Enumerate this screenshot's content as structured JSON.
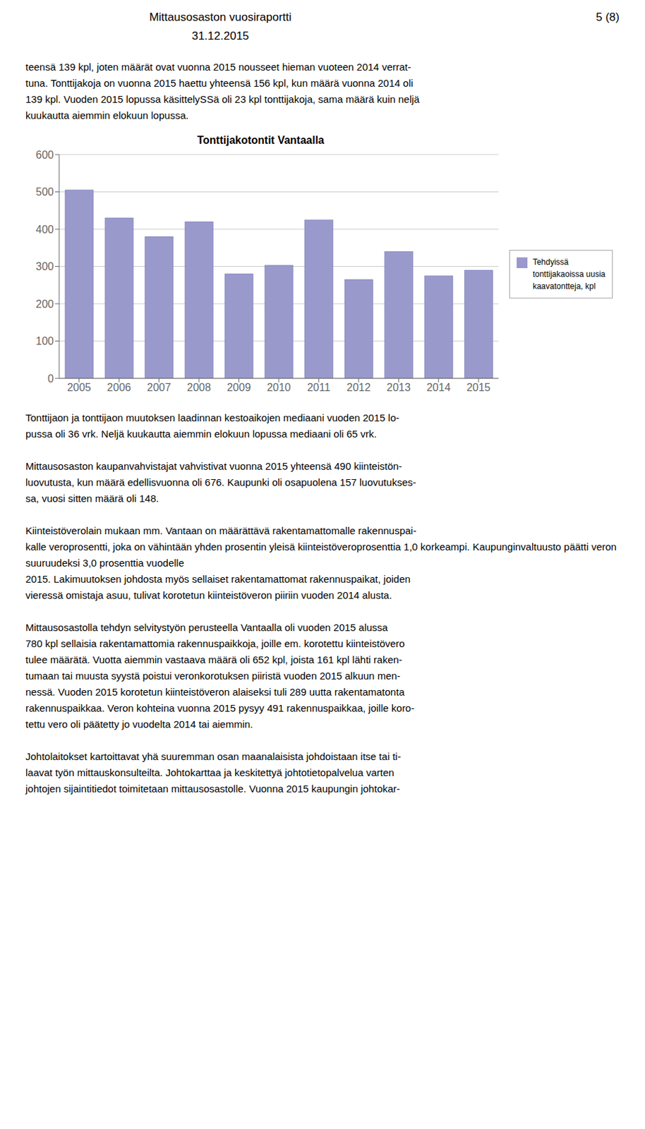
{
  "chart_data": {
    "type": "bar",
    "title": "Tonttijakotontit Vantaalla",
    "categories": [
      "2005",
      "2006",
      "2007",
      "2008",
      "2009",
      "2010",
      "2011",
      "2012",
      "2013",
      "2014",
      "2015"
    ],
    "series": [
      {
        "name": "Tehdyissä\ntonttijakaoissa uusia\nkaavatontteja, kpl",
        "color": "#9999cc",
        "values": [
          505,
          430,
          380,
          420,
          280,
          303,
          425,
          265,
          340,
          275,
          290
        ]
      }
    ],
    "ylim": [
      0,
      600
    ],
    "yticks": [
      0,
      100,
      200,
      300,
      400,
      500,
      600
    ],
    "grid": true,
    "legend": "right",
    "annotations": [
      [
        "Mittausosaston vuosiraportti",
        "5 (8)",
        "31.12.2015"
      ],
      [
        "teensä 139 kpl, joten määrät ovat vuonna 2015 nousseet hieman vuoteen 2014 verrat-",
        "tuna. Tonttijakoja on vuonna 2015 haettu yhteensä 156 kpl, kun määrä vuonna 2014 oli",
        "139 kpl. Vuoden 2015 lopussa käsittelySSä oli 23 kpl tonttijakoja, sama määrä kuin neljä",
        "kuukautta aiemmin elokuun lopussa."
      ],
      [
        "Tonttijaon ja tonttijaon muutoksen laadinnan kestoaikojen mediaani vuoden 2015 lo-",
        "pussa oli 36 vrk. Neljä kuukautta aiemmin elokuun lopussa mediaani oli 65 vrk."
      ],
      [
        "Mittausosaston kaupanvahvistajat vahvistivat vuonna 2015 yhteensä 490 kiinteistön-",
        "luovutusta, kun määrä edellisvuonna oli 676. Kaupunki oli osapuolena 157 luovutukses-",
        "sa, vuosi sitten määrä oli 148."
      ],
      [
        "Kiinteistöverolain mukaan mm. Vantaan on määrättävä rakentamattomalle rakennuspai-",
        "kalle veroprosentti, joka on vähintään yhden prosentin yleisä kiinteistöveroprosenttia 1,0 korkeampi. Kaupunginvaltuusto päätti veron suuruudeksi 3,0 prosenttia vuodelle",
        "2015. Lakimuutoksen johdosta myös sellaiset rakentamattomat rakennuspaikat, joiden",
        "vieressä omistaja asuu, tulivat korotetun kiinteistöveron piiriin vuoden 2014 alusta."
      ],
      [
        "Mittausosastolla tehdyn selvitystyön perusteella Vantaalla oli vuoden 2015 alussa",
        "780 kpl sellaisia rakentamattomia rakennuspaikkoja, joille em. korotettu kiinteistövero",
        "tulee määrätä. Vuotta aiemmin vastaava määrä oli 652 kpl, joista 161 kpl lähti raken-",
        "tumaan tai muusta syystä poistui veronkorotuksen piiristä vuoden 2015 alkuun men-",
        "nessä. Vuoden 2015 korotetun kiinteistöveron alaiseksi tuli 289 uutta rakentamatonta",
        "rakennuspaikkaa. Veron kohteina vuonna 2015 pysyy 491 rakennuspaikkaa, joille koro-",
        "tettu vero oli päätetty jo vuodelta 2014 tai aiemmin."
      ],
      [
        "Johtolaitokset kartoittavat yhä suuremman osan maanalaisista johdoistaan itse tai ti-",
        "laavat työn mittauskonsulteilta. Johtokarttaa ja keskitettyä johtotietopalvelua varten",
        "johtojen sijaintitiedot toimitetaan mittausosastolle. Vuonna 2015 kaupungin johtokar-"
      ]
    ]
  }
}
